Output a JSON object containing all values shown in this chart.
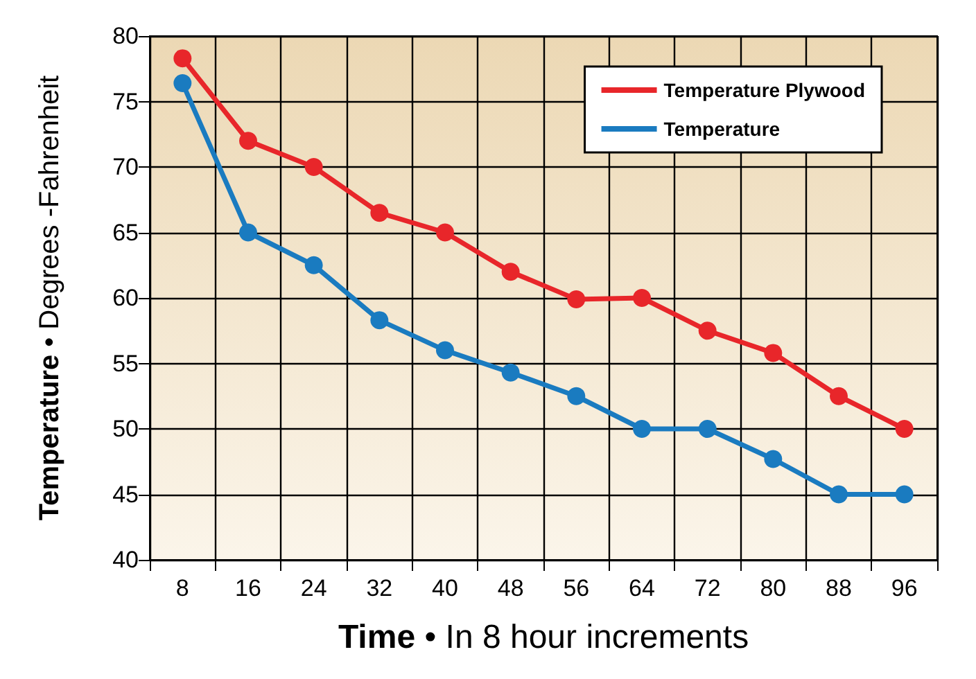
{
  "chart_data": {
    "type": "line",
    "xlabel": "Time • In 8 hour increments",
    "ylabel": "Temperature • Degrees -Fahrenheit",
    "categories": [
      "8",
      "16",
      "24",
      "32",
      "40",
      "48",
      "56",
      "64",
      "72",
      "80",
      "88",
      "96"
    ],
    "series": [
      {
        "name": "Temperature Plywood",
        "color": "#e8262a",
        "values": [
          78.3,
          72,
          70,
          66.5,
          65,
          62,
          59.9,
          60,
          57.5,
          55.8,
          52.5,
          50
        ]
      },
      {
        "name": "Temperature",
        "color": "#1a7bc0",
        "values": [
          76.4,
          65,
          62.5,
          58.3,
          56,
          54.3,
          52.5,
          50,
          50,
          47.7,
          45,
          45
        ]
      }
    ],
    "ylim": [
      40,
      80
    ],
    "yticks": [
      40,
      45,
      50,
      55,
      60,
      65,
      70,
      75,
      80
    ],
    "grid": true,
    "legend": "top right",
    "marker": "circle",
    "line_style": "solid"
  }
}
